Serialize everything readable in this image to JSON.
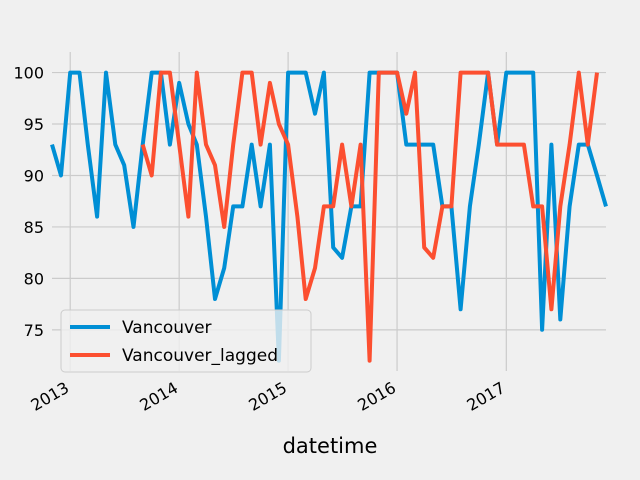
{
  "chart_data": {
    "type": "line",
    "title": "",
    "xlabel": "datetime",
    "ylabel": "",
    "x_ticks": [
      "2013",
      "2014",
      "2015",
      "2016",
      "2017"
    ],
    "y_ticks": [
      75,
      80,
      85,
      90,
      95,
      100
    ],
    "ylim": [
      71,
      102
    ],
    "xlim": [
      "2012-11-01",
      "2017-12-01"
    ],
    "grid": true,
    "legend_position": "lower-left",
    "series": [
      {
        "name": "Vancouver",
        "color": "#008fd5",
        "points": [
          [
            "2012-11-01",
            93
          ],
          [
            "2012-12-01",
            90
          ],
          [
            "2013-01-01",
            100
          ],
          [
            "2013-02-01",
            100
          ],
          [
            "2013-03-01",
            93
          ],
          [
            "2013-04-01",
            86
          ],
          [
            "2013-05-01",
            100
          ],
          [
            "2013-06-01",
            93
          ],
          [
            "2013-07-01",
            91
          ],
          [
            "2013-08-01",
            85
          ],
          [
            "2013-09-01",
            93
          ],
          [
            "2013-10-01",
            100
          ],
          [
            "2013-11-01",
            100
          ],
          [
            "2013-12-01",
            93
          ],
          [
            "2014-01-01",
            99
          ],
          [
            "2014-02-01",
            95
          ],
          [
            "2014-03-01",
            93
          ],
          [
            "2014-04-01",
            86
          ],
          [
            "2014-05-01",
            78
          ],
          [
            "2014-06-01",
            81
          ],
          [
            "2014-07-01",
            87
          ],
          [
            "2014-08-01",
            87
          ],
          [
            "2014-09-01",
            93
          ],
          [
            "2014-10-01",
            87
          ],
          [
            "2014-11-01",
            93
          ],
          [
            "2014-12-01",
            72
          ],
          [
            "2015-01-01",
            100
          ],
          [
            "2015-02-01",
            100
          ],
          [
            "2015-03-01",
            100
          ],
          [
            "2015-04-01",
            96
          ],
          [
            "2015-05-01",
            100
          ],
          [
            "2015-06-01",
            83
          ],
          [
            "2015-07-01",
            82
          ],
          [
            "2015-08-01",
            87
          ],
          [
            "2015-09-01",
            87
          ],
          [
            "2015-10-01",
            100
          ],
          [
            "2015-11-01",
            100
          ],
          [
            "2015-12-01",
            100
          ],
          [
            "2016-01-01",
            100
          ],
          [
            "2016-02-01",
            93
          ],
          [
            "2016-03-01",
            93
          ],
          [
            "2016-04-01",
            93
          ],
          [
            "2016-05-01",
            93
          ],
          [
            "2016-06-01",
            87
          ],
          [
            "2016-07-01",
            87
          ],
          [
            "2016-08-01",
            77
          ],
          [
            "2016-09-01",
            87
          ],
          [
            "2016-10-01",
            93
          ],
          [
            "2016-11-01",
            100
          ],
          [
            "2016-12-01",
            93
          ],
          [
            "2017-01-01",
            100
          ],
          [
            "2017-02-01",
            100
          ],
          [
            "2017-03-01",
            100
          ],
          [
            "2017-04-01",
            100
          ],
          [
            "2017-05-01",
            75
          ],
          [
            "2017-06-01",
            93
          ],
          [
            "2017-07-01",
            76
          ],
          [
            "2017-08-01",
            87
          ],
          [
            "2017-09-01",
            93
          ],
          [
            "2017-10-01",
            93
          ],
          [
            "2017-11-01",
            90
          ],
          [
            "2017-12-01",
            87
          ]
        ]
      },
      {
        "name": "Vancouver_lagged",
        "color": "#fc4f30",
        "points": [
          [
            "2013-09-01",
            93
          ],
          [
            "2013-10-01",
            90
          ],
          [
            "2013-11-01",
            100
          ],
          [
            "2013-12-01",
            100
          ],
          [
            "2014-01-01",
            93
          ],
          [
            "2014-02-01",
            86
          ],
          [
            "2014-03-01",
            100
          ],
          [
            "2014-04-01",
            93
          ],
          [
            "2014-05-01",
            91
          ],
          [
            "2014-06-01",
            85
          ],
          [
            "2014-07-01",
            93
          ],
          [
            "2014-08-01",
            100
          ],
          [
            "2014-09-01",
            100
          ],
          [
            "2014-10-01",
            93
          ],
          [
            "2014-11-01",
            99
          ],
          [
            "2014-12-01",
            95
          ],
          [
            "2015-01-01",
            93
          ],
          [
            "2015-02-01",
            86
          ],
          [
            "2015-03-01",
            78
          ],
          [
            "2015-04-01",
            81
          ],
          [
            "2015-05-01",
            87
          ],
          [
            "2015-06-01",
            87
          ],
          [
            "2015-07-01",
            93
          ],
          [
            "2015-08-01",
            87
          ],
          [
            "2015-09-01",
            93
          ],
          [
            "2015-10-01",
            72
          ],
          [
            "2015-11-01",
            100
          ],
          [
            "2015-12-01",
            100
          ],
          [
            "2016-01-01",
            100
          ],
          [
            "2016-02-01",
            96
          ],
          [
            "2016-03-01",
            100
          ],
          [
            "2016-04-01",
            83
          ],
          [
            "2016-05-01",
            82
          ],
          [
            "2016-06-01",
            87
          ],
          [
            "2016-07-01",
            87
          ],
          [
            "2016-08-01",
            100
          ],
          [
            "2016-09-01",
            100
          ],
          [
            "2016-10-01",
            100
          ],
          [
            "2016-11-01",
            100
          ],
          [
            "2016-12-01",
            93
          ],
          [
            "2017-01-01",
            93
          ],
          [
            "2017-02-01",
            93
          ],
          [
            "2017-03-01",
            93
          ],
          [
            "2017-04-01",
            87
          ],
          [
            "2017-05-01",
            87
          ],
          [
            "2017-06-01",
            77
          ],
          [
            "2017-07-01",
            87
          ],
          [
            "2017-08-01",
            93
          ],
          [
            "2017-09-01",
            100
          ],
          [
            "2017-10-01",
            93
          ],
          [
            "2017-11-01",
            100
          ]
        ]
      }
    ]
  }
}
